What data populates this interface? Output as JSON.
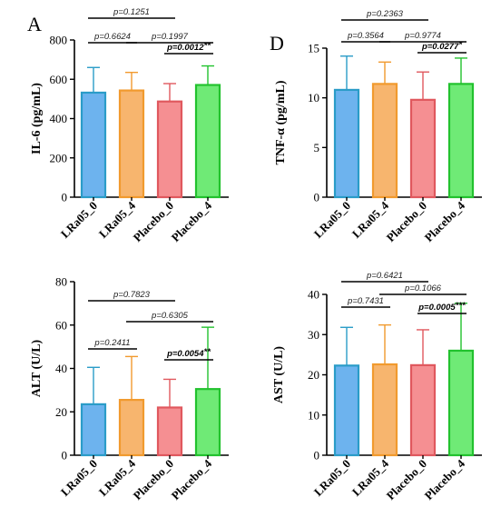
{
  "chart_data": [
    {
      "type": "bar",
      "panel": "A",
      "ylabel": "IL-6 (pg/mL)",
      "categories": [
        "LRa05_0",
        "LRa05_4",
        "Placebo_0",
        "Placebo_4"
      ],
      "values": [
        532,
        543,
        487,
        571
      ],
      "errors_upper": [
        660,
        635,
        578,
        668
      ],
      "ylim": [
        0,
        800
      ],
      "yticks": [
        "0",
        "200",
        "400",
        "600",
        "800"
      ],
      "comparisons": [
        {
          "from": 0,
          "to": 2,
          "label": "p=0.1251",
          "bold": false,
          "stars": ""
        },
        {
          "from": 0,
          "to": 1,
          "label": "p=0.6624",
          "bold": false,
          "stars": ""
        },
        {
          "from": 1,
          "to": 3,
          "label": "p=0.1997",
          "bold": false,
          "stars": ""
        },
        {
          "from": 2,
          "to": 3,
          "label": "p=0.0012",
          "bold": true,
          "stars": "**"
        }
      ]
    },
    {
      "type": "bar",
      "panel": "D",
      "ylabel": "TNF-α (pg/mL)",
      "categories": [
        "LRa05_0",
        "LRa05_4",
        "Placebo_0",
        "Placebo_4"
      ],
      "values": [
        10.8,
        11.4,
        9.8,
        11.4
      ],
      "errors_upper": [
        14.2,
        13.6,
        12.6,
        14.0
      ],
      "ylim": [
        0,
        15
      ],
      "yticks": [
        "0",
        "5",
        "10",
        "15"
      ],
      "comparisons": [
        {
          "from": 0,
          "to": 2,
          "label": "p=0.2363",
          "bold": false,
          "stars": ""
        },
        {
          "from": 0,
          "to": 1,
          "label": "p=0.3564",
          "bold": false,
          "stars": ""
        },
        {
          "from": 1,
          "to": 3,
          "label": "p=0.9774",
          "bold": false,
          "stars": ""
        },
        {
          "from": 2,
          "to": 3,
          "label": "p=0.0277",
          "bold": true,
          "stars": "*"
        }
      ]
    },
    {
      "type": "bar",
      "panel": "",
      "ylabel": "ALT (U/L)",
      "categories": [
        "LRa05_0",
        "LRa05_4",
        "Placebo_0",
        "Placebo_4"
      ],
      "values": [
        23.5,
        25.5,
        22.0,
        30.5
      ],
      "errors_upper": [
        40.5,
        45.5,
        35.0,
        59.0
      ],
      "ylim": [
        0,
        80
      ],
      "yticks": [
        "0",
        "20",
        "40",
        "60",
        "80"
      ],
      "comparisons": [
        {
          "from": 0,
          "to": 2,
          "label": "p=0.7823",
          "bold": false,
          "stars": ""
        },
        {
          "from": 1,
          "to": 3,
          "label": "p=0.6305",
          "bold": false,
          "stars": ""
        },
        {
          "from": 0,
          "to": 1,
          "label": "p=0.2411",
          "bold": false,
          "stars": ""
        },
        {
          "from": 2,
          "to": 3,
          "label": "p=0.0054",
          "bold": true,
          "stars": "**"
        }
      ]
    },
    {
      "type": "bar",
      "panel": "",
      "ylabel": "AST (U/L)",
      "categories": [
        "LRa05_0",
        "LRa05_4",
        "Placebo_0",
        "Placebo_4"
      ],
      "values": [
        22.3,
        22.6,
        22.4,
        26.0
      ],
      "errors_upper": [
        31.8,
        32.4,
        31.2,
        37.8
      ],
      "ylim": [
        0,
        40
      ],
      "yticks": [
        "0",
        "10",
        "20",
        "30",
        "40"
      ],
      "comparisons": [
        {
          "from": 0,
          "to": 2,
          "label": "p=0.6421",
          "bold": false,
          "stars": ""
        },
        {
          "from": 0,
          "to": 1,
          "label": "p=0.7431",
          "bold": false,
          "stars": ""
        },
        {
          "from": 1,
          "to": 3,
          "label": "p=0.1066",
          "bold": false,
          "stars": ""
        },
        {
          "from": 2,
          "to": 3,
          "label": "p=0.0005",
          "bold": true,
          "stars": "***"
        }
      ]
    }
  ],
  "colors": {
    "fills": [
      "#6db3ee",
      "#f7b56e",
      "#f58f92",
      "#6fea76"
    ],
    "strokes": [
      "#2a9cc8",
      "#f19a2e",
      "#e0585e",
      "#22c22e"
    ]
  }
}
